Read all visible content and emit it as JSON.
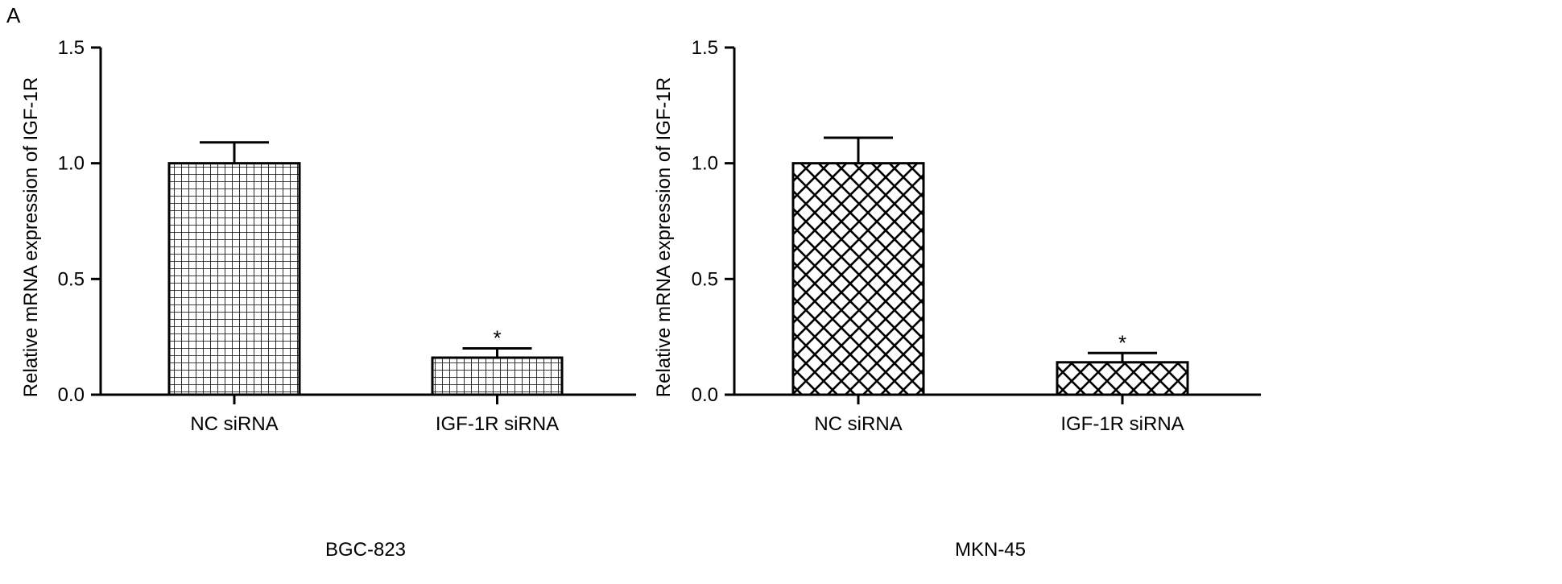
{
  "figure": {
    "panel_label": "A"
  },
  "chart_data": [
    {
      "type": "bar",
      "title": "",
      "xlabel": "BGC-823",
      "ylabel": "Relative mRNA expression of IGF-1R",
      "ylim": [
        0,
        1.5
      ],
      "yticks": [
        "0.0",
        "0.5",
        "1.0",
        "1.5"
      ],
      "categories": [
        "NC siRNA",
        "IGF-1R siRNA"
      ],
      "values": [
        1.0,
        0.16
      ],
      "errors": [
        0.09,
        0.04
      ],
      "annotations": [
        "",
        "*"
      ],
      "pattern": "grid",
      "grid": false
    },
    {
      "type": "bar",
      "title": "",
      "xlabel": "MKN-45",
      "ylabel": "Relative mRNA expression of IGF-1R",
      "ylim": [
        0,
        1.5
      ],
      "yticks": [
        "0.0",
        "0.5",
        "1.0",
        "1.5"
      ],
      "categories": [
        "NC siRNA",
        "IGF-1R siRNA"
      ],
      "values": [
        1.0,
        0.14
      ],
      "errors": [
        0.11,
        0.04
      ],
      "annotations": [
        "",
        "*"
      ],
      "pattern": "diamond",
      "grid": false
    }
  ]
}
